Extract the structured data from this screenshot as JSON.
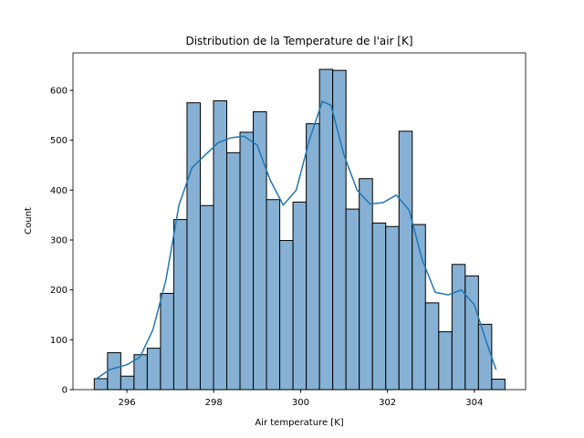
{
  "chart_data": {
    "type": "histogram",
    "title": "Distribution de la Temperature de l'air [K]",
    "x_label": "Air temperature [K]",
    "y_label": "Count",
    "bins": [
      295.25,
      295.555,
      295.86,
      296.165,
      296.47,
      296.775,
      297.08,
      297.385,
      297.69,
      297.995,
      298.3,
      298.605,
      298.91,
      299.215,
      299.52,
      299.825,
      300.13,
      300.435,
      300.74,
      301.045,
      301.35,
      301.655,
      301.96,
      302.265,
      302.57,
      302.875,
      303.18,
      303.485,
      303.79,
      304.095,
      304.4,
      304.705
    ],
    "values": [
      22,
      74,
      27,
      70,
      83,
      193,
      341,
      575,
      369,
      579,
      475,
      516,
      557,
      381,
      299,
      376,
      533,
      642,
      640,
      362,
      423,
      334,
      327,
      518,
      331,
      174,
      116,
      251,
      228,
      131,
      21
    ],
    "color": "#86b1d4",
    "edge_color": "#000000",
    "kde": {
      "color": "#1f77b4",
      "x": [
        295.3,
        295.6,
        296.0,
        296.3,
        296.6,
        296.9,
        297.2,
        297.5,
        297.8,
        298.1,
        298.4,
        298.7,
        299.0,
        299.3,
        299.6,
        299.9,
        300.2,
        300.5,
        300.7,
        301.0,
        301.3,
        301.6,
        301.9,
        302.2,
        302.5,
        302.8,
        303.1,
        303.4,
        303.7,
        304.0,
        304.3,
        304.5
      ],
      "values": [
        22,
        40,
        50,
        65,
        120,
        220,
        370,
        445,
        470,
        495,
        505,
        508,
        490,
        420,
        370,
        400,
        500,
        578,
        570,
        470,
        400,
        372,
        375,
        390,
        360,
        260,
        195,
        190,
        200,
        170,
        90,
        40
      ]
    },
    "xlim": [
      294.76,
      305.18
    ],
    "ylim": [
      0,
      675
    ],
    "xticks": [
      296,
      298,
      300,
      302,
      304
    ],
    "yticks": [
      0,
      100,
      200,
      300,
      400,
      500,
      600
    ]
  }
}
